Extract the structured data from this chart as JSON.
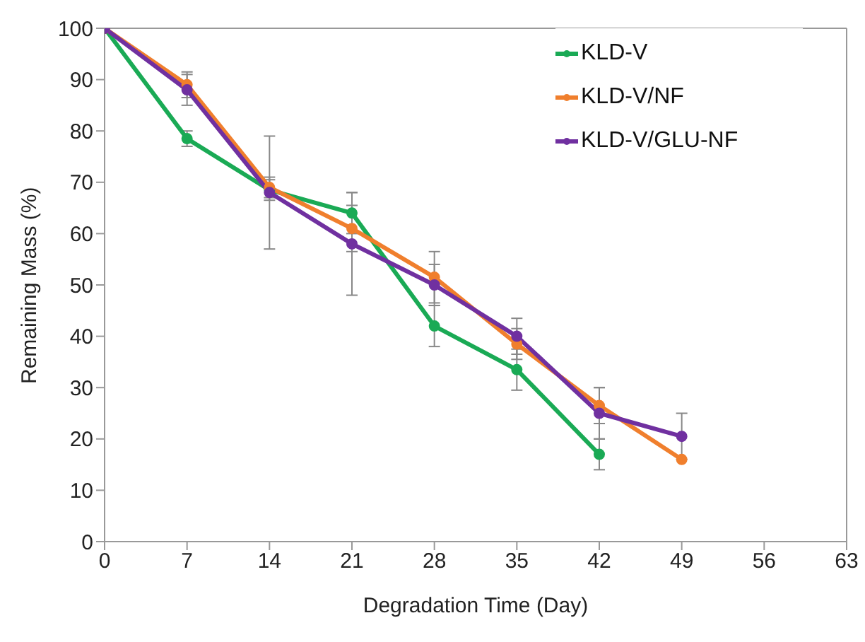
{
  "chart_data": {
    "type": "line",
    "xlabel": "Degradation Time (Day)",
    "ylabel": "Remaining Mass (%)",
    "x": [
      0,
      7,
      14,
      21,
      28,
      35,
      42,
      49
    ],
    "series": [
      {
        "name": "KLD-V",
        "color": "#1aaa55",
        "values": [
          100,
          78.5,
          68.5,
          64,
          42,
          33.5,
          17,
          null
        ],
        "errors": [
          null,
          1.5,
          2,
          4,
          4,
          4,
          3,
          null
        ]
      },
      {
        "name": "KLD-V/NF",
        "color": "#f07f2d",
        "values": [
          100,
          89,
          69,
          61,
          51.5,
          38.5,
          26.5,
          16
        ],
        "errors": [
          null,
          2.5,
          2,
          4.5,
          5,
          3,
          3.5,
          null
        ]
      },
      {
        "name": "KLD-V/GLU-NF",
        "color": "#7030a0",
        "values": [
          100,
          88,
          68,
          58,
          50,
          40,
          25,
          20.5
        ],
        "errors": [
          null,
          3,
          11,
          10,
          4,
          3.5,
          5,
          4.5
        ]
      }
    ],
    "xlim": [
      0,
      63
    ],
    "xticks": [
      0,
      7,
      14,
      21,
      28,
      35,
      42,
      49,
      56,
      63
    ],
    "ylim": [
      0,
      100
    ],
    "yticks": [
      0,
      10,
      20,
      30,
      40,
      50,
      60,
      70,
      80,
      90,
      100
    ],
    "grid": false,
    "legend": "top right",
    "marker": "circle",
    "line_style": "solid"
  }
}
